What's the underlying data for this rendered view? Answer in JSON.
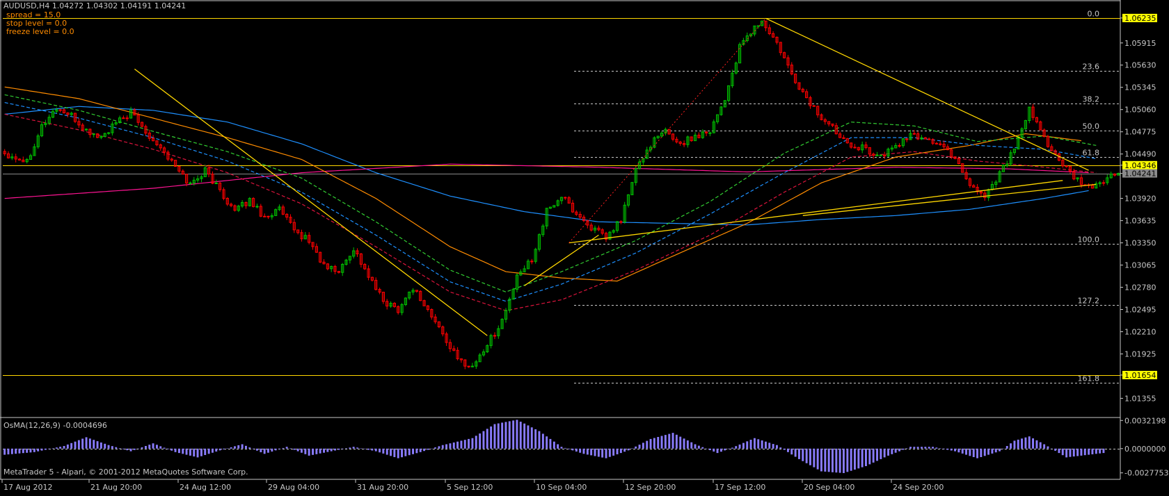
{
  "chart_header": {
    "title": "AUDUSD,H4  1.04272 1.04302 1.04191 1.04241",
    "spread": "spread = 15.0",
    "stop_level": "stop level = 0.0",
    "freeze_level": "freeze level = 0.0"
  },
  "indicator_label": "OsMA(12,26,9) -0.0004696",
  "copyright": "MetaTrader 5 - Alpari, © 2001-2012 MetaQuotes Software Corp.",
  "colors": {
    "background": "#000000",
    "bull_candle": "#00c000",
    "bear_candle": "#ff0000",
    "trendline": "#ffd700",
    "ma_blue": "#1e90ff",
    "ma_orange": "#ff8c00",
    "ma_green": "#32cd32",
    "ma_red": "#dc143c",
    "ma_pink": "#ff1493",
    "osma_bars": "#8a7cff",
    "price_tag_bg": "#ffff00"
  },
  "chart_data": {
    "type": "candlestick",
    "symbol": "AUDUSD",
    "timeframe": "H4",
    "ylim": [
      1.01145,
      1.06305
    ],
    "y_ticks": [
      "1.06235",
      "1.05915",
      "1.05630",
      "1.05345",
      "1.05060",
      "1.04775",
      "1.04490",
      "1.04346",
      "1.04241",
      "1.03920",
      "1.03635",
      "1.03350",
      "1.03065",
      "1.02780",
      "1.02495",
      "1.02210",
      "1.01925",
      "1.01654",
      "1.01355"
    ],
    "highlighted_prices": [
      "1.06235",
      "1.04346",
      "1.01654"
    ],
    "current_price": "1.04241",
    "x_labels": [
      "17 Aug 2012",
      "21 Aug 20:00",
      "24 Aug 12:00",
      "29 Aug 04:00",
      "31 Aug 20:00",
      "5 Sep 12:00",
      "10 Sep 04:00",
      "12 Sep 20:00",
      "17 Sep 12:00",
      "20 Sep 04:00",
      "24 Sep 20:00"
    ],
    "fibonacci": {
      "levels": [
        "0.0",
        "23.6",
        "38.2",
        "50.0",
        "61.8",
        "100.0",
        "127.2",
        "161.8"
      ],
      "values": [
        1.06235,
        1.05554,
        1.05134,
        1.04793,
        1.04452,
        1.03335,
        1.02553,
        1.01553
      ]
    },
    "horizontal_lines": [
      1.06235,
      1.04346,
      1.01654
    ],
    "anchors": [
      [
        0,
        1.045
      ],
      [
        6,
        1.044
      ],
      [
        10,
        1.0485
      ],
      [
        14,
        1.0508
      ],
      [
        18,
        1.0497
      ],
      [
        22,
        1.0478
      ],
      [
        26,
        1.047
      ],
      [
        30,
        1.0488
      ],
      [
        34,
        1.0502
      ],
      [
        38,
        1.0478
      ],
      [
        42,
        1.0458
      ],
      [
        46,
        1.0432
      ],
      [
        50,
        1.041
      ],
      [
        54,
        1.0428
      ],
      [
        58,
        1.0402
      ],
      [
        62,
        1.0375
      ],
      [
        66,
        1.039
      ],
      [
        70,
        1.0368
      ],
      [
        74,
        1.0378
      ],
      [
        78,
        1.035
      ],
      [
        82,
        1.0338
      ],
      [
        86,
        1.0305
      ],
      [
        90,
        1.0298
      ],
      [
        94,
        1.0328
      ],
      [
        98,
        1.0292
      ],
      [
        102,
        1.026
      ],
      [
        106,
        1.025
      ],
      [
        110,
        1.0278
      ],
      [
        114,
        1.0248
      ],
      [
        118,
        1.0218
      ],
      [
        122,
        1.0185
      ],
      [
        126,
        1.0176
      ],
      [
        130,
        1.0205
      ],
      [
        134,
        1.0235
      ],
      [
        138,
        1.029
      ],
      [
        142,
        1.0315
      ],
      [
        146,
        1.0375
      ],
      [
        150,
        1.0395
      ],
      [
        154,
        1.0372
      ],
      [
        158,
        1.0355
      ],
      [
        162,
        1.034
      ],
      [
        166,
        1.0365
      ],
      [
        170,
        1.0428
      ],
      [
        174,
        1.0462
      ],
      [
        178,
        1.0478
      ],
      [
        182,
        1.0462
      ],
      [
        186,
        1.0472
      ],
      [
        190,
        1.048
      ],
      [
        194,
        1.052
      ],
      [
        198,
        1.0585
      ],
      [
        202,
        1.0612
      ],
      [
        204,
        1.0618
      ],
      [
        208,
        1.059
      ],
      [
        212,
        1.055
      ],
      [
        216,
        1.052
      ],
      [
        220,
        1.0495
      ],
      [
        224,
        1.0478
      ],
      [
        228,
        1.0462
      ],
      [
        232,
        1.0455
      ],
      [
        236,
        1.0445
      ],
      [
        240,
        1.046
      ],
      [
        244,
        1.0472
      ],
      [
        248,
        1.047
      ],
      [
        252,
        1.046
      ],
      [
        256,
        1.0445
      ],
      [
        260,
        1.041
      ],
      [
        264,
        1.0395
      ],
      [
        268,
        1.0425
      ],
      [
        272,
        1.0455
      ],
      [
        276,
        1.0505
      ],
      [
        280,
        1.047
      ],
      [
        284,
        1.044
      ],
      [
        288,
        1.0418
      ],
      [
        292,
        1.0405
      ],
      [
        296,
        1.0415
      ],
      [
        300,
        1.0424
      ]
    ],
    "moving_averages": [
      {
        "color": "#1e90ff",
        "dash": "",
        "points": [
          [
            0,
            1.05
          ],
          [
            20,
            1.051
          ],
          [
            40,
            1.0505
          ],
          [
            60,
            1.049
          ],
          [
            80,
            1.0462
          ],
          [
            100,
            1.0425
          ],
          [
            120,
            1.0395
          ],
          [
            140,
            1.0375
          ],
          [
            160,
            1.0362
          ],
          [
            180,
            1.036
          ],
          [
            200,
            1.0358
          ],
          [
            220,
            1.0365
          ],
          [
            240,
            1.037
          ],
          [
            260,
            1.0378
          ],
          [
            280,
            1.0392
          ],
          [
            292,
            1.0402
          ]
        ]
      },
      {
        "color": "#ff1493",
        "dash": "",
        "points": [
          [
            0,
            1.0392
          ],
          [
            40,
            1.0405
          ],
          [
            80,
            1.0425
          ],
          [
            120,
            1.0436
          ],
          [
            160,
            1.0432
          ],
          [
            200,
            1.0426
          ],
          [
            240,
            1.0432
          ],
          [
            270,
            1.043
          ],
          [
            292,
            1.0425
          ]
        ]
      },
      {
        "color": "#ff8c00",
        "dash": "",
        "points": [
          [
            0,
            1.0535
          ],
          [
            20,
            1.052
          ],
          [
            40,
            1.0495
          ],
          [
            60,
            1.047
          ],
          [
            80,
            1.0442
          ],
          [
            100,
            1.0392
          ],
          [
            120,
            1.033
          ],
          [
            135,
            1.0298
          ],
          [
            150,
            1.029
          ],
          [
            165,
            1.0286
          ],
          [
            180,
            1.0318
          ],
          [
            200,
            1.036
          ],
          [
            220,
            1.0412
          ],
          [
            240,
            1.0445
          ],
          [
            260,
            1.046
          ],
          [
            275,
            1.0475
          ],
          [
            290,
            1.0466
          ]
        ]
      },
      {
        "color": "#32cd32",
        "dash": "5,3",
        "points": [
          [
            0,
            1.0525
          ],
          [
            20,
            1.0505
          ],
          [
            40,
            1.0478
          ],
          [
            60,
            1.0452
          ],
          [
            80,
            1.0418
          ],
          [
            100,
            1.0362
          ],
          [
            120,
            1.03
          ],
          [
            135,
            1.0272
          ],
          [
            150,
            1.0298
          ],
          [
            170,
            1.0338
          ],
          [
            190,
            1.0388
          ],
          [
            210,
            1.045
          ],
          [
            228,
            1.049
          ],
          [
            245,
            1.0485
          ],
          [
            262,
            1.0465
          ],
          [
            280,
            1.0472
          ],
          [
            294,
            1.046
          ]
        ]
      },
      {
        "color": "#1e90ff",
        "dash": "5,3",
        "points": [
          [
            0,
            1.0515
          ],
          [
            20,
            1.0495
          ],
          [
            40,
            1.047
          ],
          [
            60,
            1.044
          ],
          [
            80,
            1.04
          ],
          [
            100,
            1.0345
          ],
          [
            120,
            1.0285
          ],
          [
            135,
            1.026
          ],
          [
            150,
            1.0282
          ],
          [
            170,
            1.0322
          ],
          [
            190,
            1.0372
          ],
          [
            210,
            1.0425
          ],
          [
            228,
            1.047
          ],
          [
            245,
            1.047
          ],
          [
            262,
            1.046
          ],
          [
            280,
            1.0455
          ],
          [
            294,
            1.0443
          ]
        ]
      },
      {
        "color": "#dc143c",
        "dash": "5,3",
        "points": [
          [
            0,
            1.05
          ],
          [
            20,
            1.048
          ],
          [
            40,
            1.0455
          ],
          [
            60,
            1.0425
          ],
          [
            80,
            1.0385
          ],
          [
            100,
            1.033
          ],
          [
            120,
            1.0272
          ],
          [
            135,
            1.0248
          ],
          [
            150,
            1.0262
          ],
          [
            170,
            1.03
          ],
          [
            190,
            1.0345
          ],
          [
            210,
            1.04
          ],
          [
            228,
            1.0445
          ],
          [
            245,
            1.0452
          ],
          [
            262,
            1.044
          ],
          [
            280,
            1.0432
          ],
          [
            294,
            1.0425
          ]
        ]
      }
    ],
    "trend_lines": [
      {
        "points": [
          [
            35,
            1.0558
          ],
          [
            130,
            1.0216
          ]
        ]
      },
      {
        "points": [
          [
            205,
            1.0623
          ],
          [
            292,
            1.0428
          ]
        ]
      },
      {
        "points": [
          [
            152,
            1.0335
          ],
          [
            285,
            1.0415
          ]
        ]
      },
      {
        "points": [
          [
            215,
            1.037
          ],
          [
            294,
            1.041
          ]
        ]
      },
      {
        "points": [
          [
            140,
            1.028
          ],
          [
            160,
            1.0345
          ]
        ]
      }
    ],
    "dotted_swing": {
      "points": [
        [
          152,
          1.0335
        ],
        [
          205,
          1.0623
        ]
      ]
    },
    "osma": {
      "ylim": [
        -0.0032,
        0.0034
      ],
      "ticks": [
        "0.0032198",
        "0.0000000",
        "-0.0027753"
      ],
      "anchors": [
        [
          0,
          -0.0007
        ],
        [
          8,
          -0.0004
        ],
        [
          16,
          0.0003
        ],
        [
          22,
          0.0013
        ],
        [
          28,
          0.0004
        ],
        [
          34,
          -0.0003
        ],
        [
          40,
          0.0006
        ],
        [
          46,
          -0.0004
        ],
        [
          52,
          -0.001
        ],
        [
          58,
          -0.0002
        ],
        [
          64,
          0.0005
        ],
        [
          70,
          -0.0006
        ],
        [
          76,
          0.0002
        ],
        [
          82,
          -0.0008
        ],
        [
          88,
          -0.0003
        ],
        [
          94,
          0.0002
        ],
        [
          100,
          -0.0003
        ],
        [
          106,
          -0.0011
        ],
        [
          112,
          -0.0004
        ],
        [
          118,
          0.0004
        ],
        [
          126,
          0.0012
        ],
        [
          132,
          0.0028
        ],
        [
          138,
          0.0033
        ],
        [
          144,
          0.002
        ],
        [
          150,
          0.0002
        ],
        [
          156,
          -0.0006
        ],
        [
          162,
          -0.0011
        ],
        [
          168,
          -0.0002
        ],
        [
          174,
          0.0011
        ],
        [
          180,
          0.0018
        ],
        [
          186,
          0.0005
        ],
        [
          192,
          -0.0005
        ],
        [
          196,
          0.0001
        ],
        [
          202,
          0.0012
        ],
        [
          208,
          0.0004
        ],
        [
          214,
          -0.0012
        ],
        [
          220,
          -0.0026
        ],
        [
          226,
          -0.0028
        ],
        [
          232,
          -0.002
        ],
        [
          238,
          -0.0008
        ],
        [
          244,
          0.0002
        ],
        [
          250,
          0.0002
        ],
        [
          256,
          -0.0003
        ],
        [
          262,
          -0.0011
        ],
        [
          268,
          -0.0003
        ],
        [
          272,
          0.0009
        ],
        [
          276,
          0.0014
        ],
        [
          280,
          0.0005
        ],
        [
          286,
          -0.001
        ],
        [
          292,
          -0.0007
        ],
        [
          296,
          -0.0005
        ]
      ]
    }
  }
}
